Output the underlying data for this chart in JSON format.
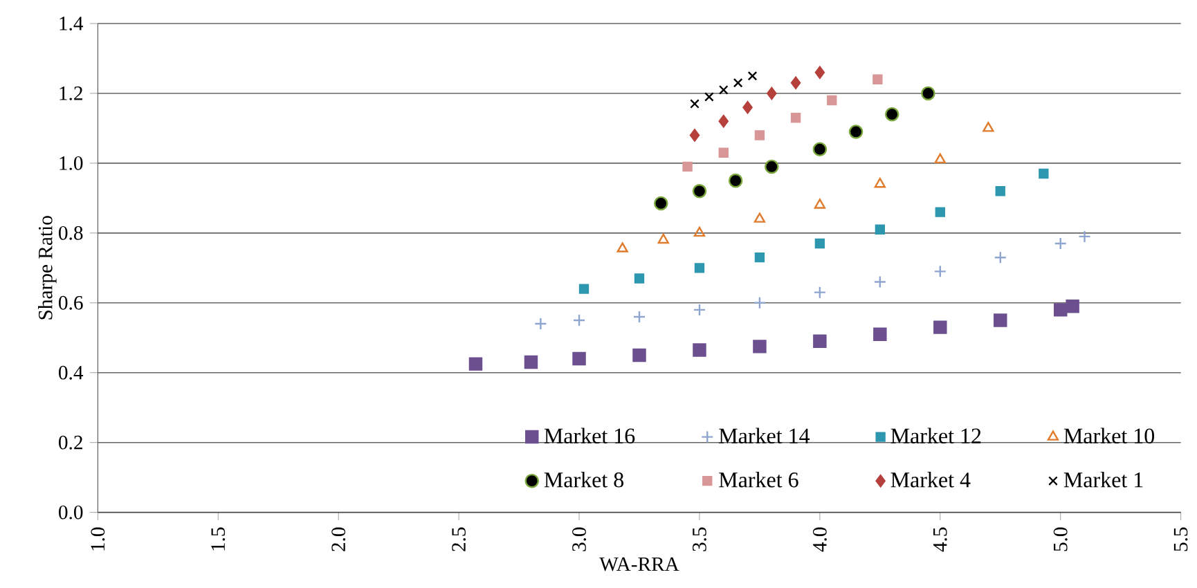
{
  "chart_data": {
    "type": "scatter",
    "xlabel": "WA-RRA",
    "ylabel": "Sharpe Ratio",
    "xlim": [
      1.0,
      5.5
    ],
    "ylim": [
      0.0,
      1.4
    ],
    "xticks": [
      {
        "value": 1.0,
        "label": "1.0"
      },
      {
        "value": 1.5,
        "label": "1.5"
      },
      {
        "value": 2.0,
        "label": "2.0"
      },
      {
        "value": 2.5,
        "label": "2.5"
      },
      {
        "value": 3.0,
        "label": "3.0"
      },
      {
        "value": 3.5,
        "label": "3.5"
      },
      {
        "value": 4.0,
        "label": "4.0"
      },
      {
        "value": 4.5,
        "label": "4.5"
      },
      {
        "value": 5.0,
        "label": "5.0"
      },
      {
        "value": 5.5,
        "label": "5.5"
      }
    ],
    "yticks": [
      {
        "value": 0.0,
        "label": "0.0"
      },
      {
        "value": 0.2,
        "label": "0.2"
      },
      {
        "value": 0.4,
        "label": "0.4"
      },
      {
        "value": 0.6,
        "label": "0.6"
      },
      {
        "value": 0.8,
        "label": "0.8"
      },
      {
        "value": 1.0,
        "label": "1.0"
      },
      {
        "value": 1.2,
        "label": "1.2"
      },
      {
        "value": 1.4,
        "label": "1.4"
      }
    ],
    "grid": "y",
    "legend": "bottom",
    "series": [
      {
        "name": "Market 16",
        "color": "#6b4f8f",
        "marker": "square",
        "x": [
          2.57,
          2.8,
          3.0,
          3.25,
          3.5,
          3.75,
          4.0,
          4.25,
          4.5,
          4.75,
          5.0,
          5.05
        ],
        "values": [
          0.425,
          0.43,
          0.44,
          0.45,
          0.465,
          0.475,
          0.49,
          0.51,
          0.53,
          0.55,
          0.58,
          0.59
        ]
      },
      {
        "name": "Market 14",
        "color": "#8ea5cf",
        "marker": "plus",
        "x": [
          2.84,
          3.0,
          3.25,
          3.5,
          3.75,
          4.0,
          4.25,
          4.5,
          4.75,
          5.0,
          5.1
        ],
        "values": [
          0.54,
          0.55,
          0.56,
          0.58,
          0.6,
          0.63,
          0.66,
          0.69,
          0.73,
          0.77,
          0.79
        ]
      },
      {
        "name": "Market 12",
        "color": "#2e97b0",
        "marker": "square",
        "x": [
          3.02,
          3.25,
          3.5,
          3.75,
          4.0,
          4.25,
          4.5,
          4.75,
          4.93
        ],
        "values": [
          0.64,
          0.67,
          0.7,
          0.73,
          0.77,
          0.81,
          0.86,
          0.92,
          0.97
        ]
      },
      {
        "name": "Market 10",
        "color": "#e07b2c",
        "marker": "triangle",
        "x": [
          3.18,
          3.35,
          3.5,
          3.75,
          4.0,
          4.25,
          4.5,
          4.7
        ],
        "values": [
          0.755,
          0.78,
          0.8,
          0.84,
          0.88,
          0.94,
          1.01,
          1.1
        ]
      },
      {
        "name": "Market 8",
        "color": "#7aa83c",
        "marker": "circle",
        "x": [
          3.34,
          3.5,
          3.65,
          3.8,
          4.0,
          4.15,
          4.3,
          4.45
        ],
        "values": [
          0.885,
          0.92,
          0.95,
          0.99,
          1.04,
          1.09,
          1.14,
          1.2
        ]
      },
      {
        "name": "Market 6",
        "color": "#d99696",
        "marker": "square",
        "x": [
          3.45,
          3.6,
          3.75,
          3.9,
          4.05,
          4.24
        ],
        "values": [
          0.99,
          1.03,
          1.08,
          1.13,
          1.18,
          1.24
        ]
      },
      {
        "name": "Market 4",
        "color": "#b5403c",
        "marker": "diamond",
        "x": [
          3.48,
          3.6,
          3.7,
          3.8,
          3.9,
          4.0
        ],
        "values": [
          1.08,
          1.12,
          1.16,
          1.2,
          1.23,
          1.26
        ]
      },
      {
        "name": "Market 1",
        "color": "#000000",
        "marker": "x",
        "x": [
          3.48,
          3.54,
          3.6,
          3.66,
          3.72
        ],
        "values": [
          1.17,
          1.19,
          1.21,
          1.23,
          1.25
        ]
      }
    ]
  }
}
